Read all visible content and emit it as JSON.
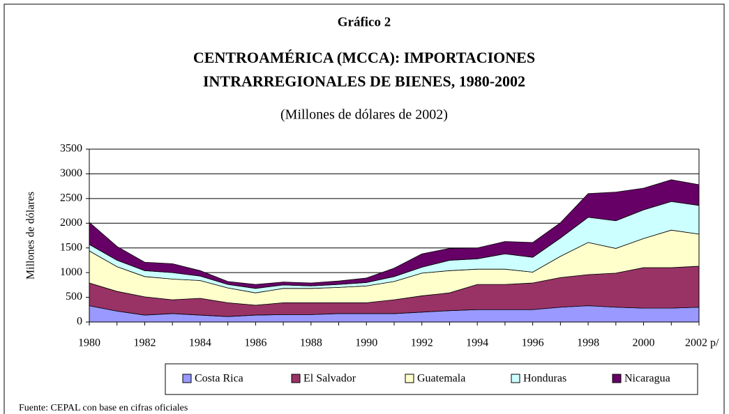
{
  "chart_data": {
    "type": "stacked_area",
    "heading": "Gráfico 2",
    "title": [
      "CENTROAMÉRICA (MCCA): IMPORTACIONES",
      "INTRARREGIONALES DE BIENES, 1980-2002"
    ],
    "subtitle": "(Millones de dólares de 2002)",
    "ylabel": "Millones de dólares",
    "source": "Fuente: CEPAL con base en cifras oficiales",
    "categories": [
      "1980",
      null,
      "1982",
      null,
      "1984",
      null,
      "1986",
      null,
      "1988",
      null,
      "1990",
      null,
      "1992",
      null,
      "1994",
      null,
      "1996",
      null,
      "1998",
      null,
      "2000",
      null,
      "2002 p/"
    ],
    "series": [
      {
        "name": "Costa Rica",
        "color": "#9999ff",
        "values": [
          330,
          220,
          140,
          170,
          140,
          110,
          140,
          150,
          150,
          170,
          170,
          170,
          200,
          230,
          250,
          250,
          250,
          300,
          330,
          300,
          280,
          280,
          300
        ]
      },
      {
        "name": "El Salvador",
        "color": "#993366",
        "values": [
          460,
          400,
          370,
          280,
          340,
          280,
          200,
          240,
          240,
          220,
          220,
          280,
          330,
          360,
          510,
          510,
          540,
          600,
          630,
          690,
          820,
          820,
          830
        ]
      },
      {
        "name": "Guatemala",
        "color": "#ffffcc",
        "values": [
          650,
          500,
          410,
          420,
          360,
          300,
          250,
          290,
          290,
          310,
          340,
          370,
          460,
          450,
          310,
          310,
          220,
          430,
          650,
          500,
          590,
          760,
          650
        ]
      },
      {
        "name": "Honduras",
        "color": "#ccffff",
        "values": [
          130,
          130,
          120,
          130,
          90,
          70,
          90,
          70,
          50,
          60,
          70,
          100,
          120,
          210,
          210,
          310,
          300,
          370,
          510,
          560,
          580,
          580,
          580
        ]
      },
      {
        "name": "Nicaragua",
        "color": "#660066",
        "values": [
          450,
          280,
          170,
          180,
          110,
          60,
          80,
          60,
          60,
          70,
          90,
          170,
          270,
          240,
          220,
          250,
          300,
          310,
          480,
          580,
          440,
          440,
          420
        ]
      }
    ],
    "ylim": [
      0,
      3500
    ],
    "yticks": [
      0,
      500,
      1000,
      1500,
      2000,
      2500,
      3000,
      3500
    ],
    "grid": true,
    "legend": "bottom"
  }
}
